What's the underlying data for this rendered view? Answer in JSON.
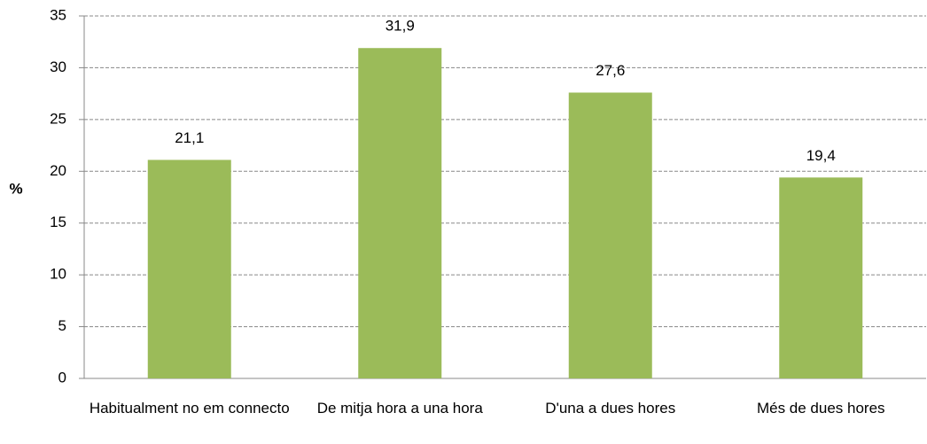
{
  "chart_data": {
    "type": "bar",
    "y_label": "%",
    "categories": [
      "Habitualment no em connecto",
      "De mitja hora a una hora",
      "D'una a dues hores",
      "Més de dues hores"
    ],
    "values": [
      21.1,
      31.9,
      27.6,
      19.4
    ],
    "value_labels": [
      "21,1",
      "31,9",
      "27,6",
      "19,4"
    ],
    "color": "#9bbb59",
    "ylim": [
      0,
      35
    ],
    "yticks": [
      0,
      5,
      10,
      15,
      20,
      25,
      30,
      35
    ],
    "grid": true
  }
}
